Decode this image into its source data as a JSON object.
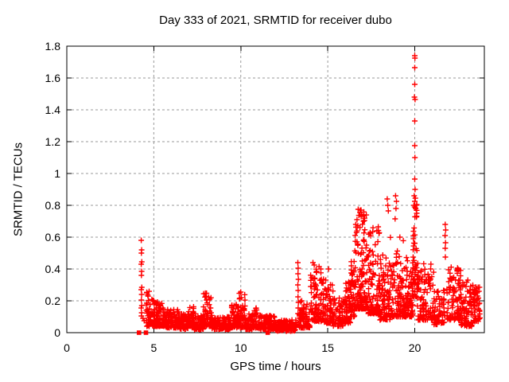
{
  "chart_data": {
    "type": "scatter",
    "title": "Day 333 of 2021, SRMTID for receiver dubo",
    "xlabel": "GPS time / hours",
    "ylabel": "SRMTID / TECUs",
    "xlim": [
      0,
      24
    ],
    "ylim": [
      0,
      1.8
    ],
    "xticks": {
      "values": [
        0,
        5,
        10,
        15,
        20
      ],
      "labels": [
        "0",
        "5",
        "10",
        "15",
        "20"
      ]
    },
    "yticks": {
      "values": [
        0,
        0.2,
        0.4,
        0.6,
        0.8,
        1.0,
        1.2,
        1.4,
        1.6,
        1.8
      ],
      "labels": [
        "0",
        "0.2",
        "0.4",
        "0.6",
        "0.8",
        "1",
        "1.2",
        "1.4",
        "1.6",
        "1.8"
      ]
    },
    "grid": true,
    "legend": "none",
    "marker": {
      "shape": "plus",
      "color": "#ff0000",
      "size": 7
    },
    "zero_markers": {
      "shape": "filled-square",
      "y": 0,
      "x": [
        4.15,
        4.55,
        11.55
      ]
    },
    "explicit_points": [
      [
        4.28,
        0.58
      ],
      [
        4.3,
        0.52
      ],
      [
        4.29,
        0.5
      ],
      [
        4.31,
        0.445
      ],
      [
        4.28,
        0.43
      ],
      [
        4.3,
        0.385
      ],
      [
        4.29,
        0.36
      ],
      [
        4.31,
        0.285
      ],
      [
        4.28,
        0.27
      ],
      [
        4.3,
        0.24
      ],
      [
        4.29,
        0.205
      ],
      [
        4.31,
        0.17
      ],
      [
        4.28,
        0.155
      ],
      [
        4.3,
        0.125
      ],
      [
        4.29,
        0.105
      ],
      [
        4.38,
        0.09
      ],
      [
        4.45,
        0.075
      ],
      [
        13.28,
        0.44
      ],
      [
        13.3,
        0.405
      ],
      [
        13.29,
        0.37
      ],
      [
        13.31,
        0.335
      ],
      [
        13.28,
        0.3
      ],
      [
        13.3,
        0.265
      ],
      [
        13.29,
        0.225
      ],
      [
        13.31,
        0.19
      ],
      [
        13.3,
        0.155
      ],
      [
        13.29,
        0.12
      ],
      [
        14.15,
        0.44
      ],
      [
        14.22,
        0.425
      ],
      [
        14.5,
        0.415
      ],
      [
        15.05,
        0.4
      ],
      [
        16.75,
        0.775
      ],
      [
        16.85,
        0.755
      ],
      [
        16.92,
        0.73
      ],
      [
        16.68,
        0.71
      ],
      [
        17.05,
        0.7
      ],
      [
        17.9,
        0.665
      ],
      [
        17.82,
        0.64
      ],
      [
        18.42,
        0.84
      ],
      [
        18.45,
        0.8
      ],
      [
        18.48,
        0.765
      ],
      [
        18.9,
        0.86
      ],
      [
        18.95,
        0.825
      ],
      [
        18.92,
        0.78
      ],
      [
        18.87,
        0.715
      ],
      [
        20.0,
        1.74
      ],
      [
        20.01,
        1.725
      ],
      [
        20.0,
        1.665
      ],
      [
        20.0,
        1.56
      ],
      [
        19.98,
        1.48
      ],
      [
        20.02,
        1.465
      ],
      [
        20.0,
        1.33
      ],
      [
        20.0,
        1.175
      ],
      [
        20.01,
        1.1
      ],
      [
        20.0,
        0.965
      ],
      [
        20.02,
        0.9
      ],
      [
        19.97,
        0.86
      ],
      [
        20.03,
        0.845
      ],
      [
        20.0,
        0.825
      ],
      [
        19.95,
        0.8
      ],
      [
        20.05,
        0.78
      ],
      [
        21.75,
        0.68
      ],
      [
        21.78,
        0.645
      ],
      [
        21.74,
        0.61
      ],
      [
        21.77,
        0.565
      ],
      [
        21.75,
        0.53
      ],
      [
        21.76,
        0.475
      ],
      [
        22.48,
        0.4
      ],
      [
        22.53,
        0.395
      ],
      [
        23.05,
        0.33
      ]
    ],
    "clusters": [
      {
        "x0": 4.55,
        "x1": 5.05,
        "n": 65,
        "ymin": 0.04,
        "ymax": 0.26,
        "bias": 1.8
      },
      {
        "x0": 5.05,
        "x1": 5.65,
        "n": 85,
        "ymin": 0.04,
        "ymax": 0.2,
        "bias": 1.8
      },
      {
        "x0": 5.65,
        "x1": 6.45,
        "n": 100,
        "ymin": 0.03,
        "ymax": 0.15,
        "bias": 1.6
      },
      {
        "x0": 6.45,
        "x1": 7.0,
        "n": 75,
        "ymin": 0.02,
        "ymax": 0.12,
        "bias": 1.5
      },
      {
        "x0": 7.0,
        "x1": 7.3,
        "n": 40,
        "ymin": 0.03,
        "ymax": 0.17,
        "bias": 1.6
      },
      {
        "x0": 7.3,
        "x1": 7.85,
        "n": 60,
        "ymin": 0.02,
        "ymax": 0.12,
        "bias": 1.5
      },
      {
        "x0": 7.85,
        "x1": 8.35,
        "n": 65,
        "ymin": 0.04,
        "ymax": 0.25,
        "bias": 2.0
      },
      {
        "x0": 8.35,
        "x1": 9.4,
        "n": 115,
        "ymin": 0.02,
        "ymax": 0.1,
        "bias": 1.4
      },
      {
        "x0": 9.4,
        "x1": 9.85,
        "n": 55,
        "ymin": 0.03,
        "ymax": 0.18,
        "bias": 1.7
      },
      {
        "x0": 9.85,
        "x1": 10.25,
        "n": 55,
        "ymin": 0.03,
        "ymax": 0.26,
        "bias": 2.0
      },
      {
        "x0": 10.25,
        "x1": 10.7,
        "n": 50,
        "ymin": 0.02,
        "ymax": 0.12,
        "bias": 1.5
      },
      {
        "x0": 10.7,
        "x1": 11.0,
        "n": 35,
        "ymin": 0.03,
        "ymax": 0.16,
        "bias": 1.7
      },
      {
        "x0": 11.0,
        "x1": 12.0,
        "n": 105,
        "ymin": 0.02,
        "ymax": 0.11,
        "bias": 1.5
      },
      {
        "x0": 12.0,
        "x1": 13.2,
        "n": 130,
        "ymin": 0.01,
        "ymax": 0.08,
        "bias": 1.3
      },
      {
        "x0": 13.35,
        "x1": 14.0,
        "n": 70,
        "ymin": 0.03,
        "ymax": 0.2,
        "bias": 1.7
      },
      {
        "x0": 14.0,
        "x1": 14.7,
        "n": 85,
        "ymin": 0.07,
        "ymax": 0.42,
        "bias": 2.0
      },
      {
        "x0": 14.7,
        "x1": 15.3,
        "n": 80,
        "ymin": 0.06,
        "ymax": 0.35,
        "bias": 2.1
      },
      {
        "x0": 15.3,
        "x1": 15.9,
        "n": 60,
        "ymin": 0.04,
        "ymax": 0.22,
        "bias": 1.8
      },
      {
        "x0": 15.9,
        "x1": 16.3,
        "n": 55,
        "ymin": 0.06,
        "ymax": 0.32,
        "bias": 1.8
      },
      {
        "x0": 16.3,
        "x1": 16.55,
        "n": 45,
        "ymin": 0.1,
        "ymax": 0.46,
        "bias": 1.7
      },
      {
        "x0": 16.55,
        "x1": 17.3,
        "n": 135,
        "ymin": 0.15,
        "ymax": 0.78,
        "bias": 2.2
      },
      {
        "x0": 17.3,
        "x1": 18.0,
        "n": 115,
        "ymin": 0.12,
        "ymax": 0.67,
        "bias": 2.2
      },
      {
        "x0": 18.0,
        "x1": 18.6,
        "n": 80,
        "ymin": 0.08,
        "ymax": 0.5,
        "bias": 2.0
      },
      {
        "x0": 18.6,
        "x1": 19.35,
        "n": 95,
        "ymin": 0.1,
        "ymax": 0.6,
        "bias": 2.0
      },
      {
        "x0": 19.35,
        "x1": 19.9,
        "n": 80,
        "ymin": 0.1,
        "ymax": 0.48,
        "bias": 1.9
      },
      {
        "x0": 19.9,
        "x1": 20.15,
        "n": 50,
        "ymin": 0.22,
        "ymax": 0.82,
        "bias": 1.4
      },
      {
        "x0": 20.15,
        "x1": 21.1,
        "n": 105,
        "ymin": 0.08,
        "ymax": 0.45,
        "bias": 2.0
      },
      {
        "x0": 21.1,
        "x1": 21.7,
        "n": 60,
        "ymin": 0.05,
        "ymax": 0.28,
        "bias": 1.7
      },
      {
        "x0": 21.85,
        "x1": 22.65,
        "n": 95,
        "ymin": 0.08,
        "ymax": 0.42,
        "bias": 1.9
      },
      {
        "x0": 22.65,
        "x1": 23.35,
        "n": 85,
        "ymin": 0.04,
        "ymax": 0.32,
        "bias": 1.8
      },
      {
        "x0": 23.35,
        "x1": 23.75,
        "n": 50,
        "ymin": 0.07,
        "ymax": 0.3,
        "bias": 1.7
      }
    ],
    "seed": 20211129
  },
  "colors": {
    "background": "#ffffff",
    "axis": "#000000",
    "grid": "#9a9a9a",
    "marker": "#ff0000",
    "text": "#000000"
  },
  "layout_hints": {
    "tick_length": 6,
    "grid_dash": "3,3"
  }
}
